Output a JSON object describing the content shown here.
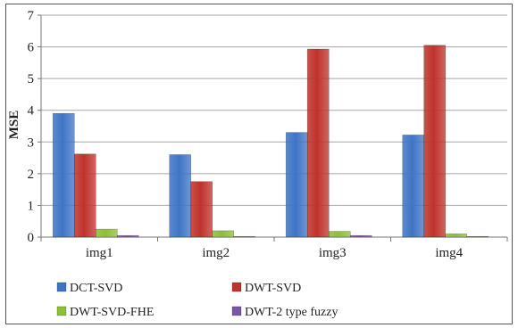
{
  "chart_data": {
    "type": "bar",
    "title": "",
    "xlabel": "",
    "ylabel": "MSE",
    "ylim": [
      0,
      7
    ],
    "yticks": [
      "0",
      "1",
      "2",
      "3",
      "4",
      "5",
      "6",
      "7"
    ],
    "grid": true,
    "legend_position": "bottom",
    "categories": [
      "img1",
      "img2",
      "img3",
      "img4"
    ],
    "series": [
      {
        "name": "DCT-SVD",
        "color": "#3f74c6",
        "values": [
          3.9,
          2.6,
          3.3,
          3.22
        ]
      },
      {
        "name": "DWT-SVD",
        "color": "#c0322c",
        "values": [
          2.62,
          1.75,
          5.93,
          6.05
        ]
      },
      {
        "name": "DWT-SVD-FHE",
        "color": "#8fbf32",
        "values": [
          0.25,
          0.2,
          0.18,
          0.1
        ]
      },
      {
        "name": "DWT-2 type fuzzy",
        "color": "#7a55a8",
        "values": [
          0.05,
          0.02,
          0.05,
          0.02
        ]
      }
    ]
  }
}
